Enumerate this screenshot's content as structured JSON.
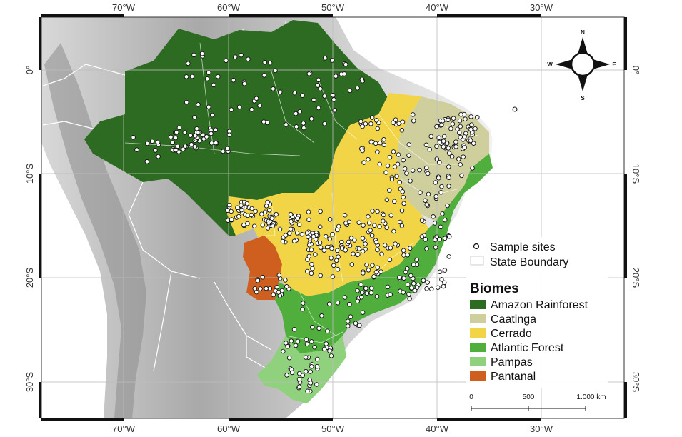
{
  "map": {
    "lon_ticks_top": [
      "70°W",
      "60°W",
      "50°W",
      "40°W",
      "30°W"
    ],
    "lon_ticks_bottom": [
      "70°W",
      "60°W",
      "50°W",
      "40°W",
      "30°W"
    ],
    "lat_ticks_left": [
      "0°",
      "10°S",
      "20°S",
      "30°S"
    ],
    "lat_ticks_right": [
      "0°",
      "10°S",
      "20°S",
      "30°S"
    ],
    "lon_range": [
      -80,
      -27
    ],
    "lat_range": [
      -34,
      5
    ],
    "graticule_step_deg": 10
  },
  "compass": {
    "n": "N",
    "s": "S",
    "e": "E",
    "w": "W"
  },
  "legend": {
    "sample_sites": "Sample sites",
    "state_boundary": "State Boundary",
    "biomes_title": "Biomes",
    "biomes": [
      {
        "label": "Amazon Rainforest",
        "color": "#2e6b22"
      },
      {
        "label": "Caatinga",
        "color": "#cfcf9e"
      },
      {
        "label": "Cerrado",
        "color": "#f1d546"
      },
      {
        "label": "Atlantic Forest",
        "color": "#4fae3c"
      },
      {
        "label": "Pampas",
        "color": "#8fd17c"
      },
      {
        "label": "Pantanal",
        "color": "#cf5f1e"
      }
    ]
  },
  "scale_bar": {
    "labels": [
      "0",
      "500",
      "1.000 km"
    ]
  }
}
